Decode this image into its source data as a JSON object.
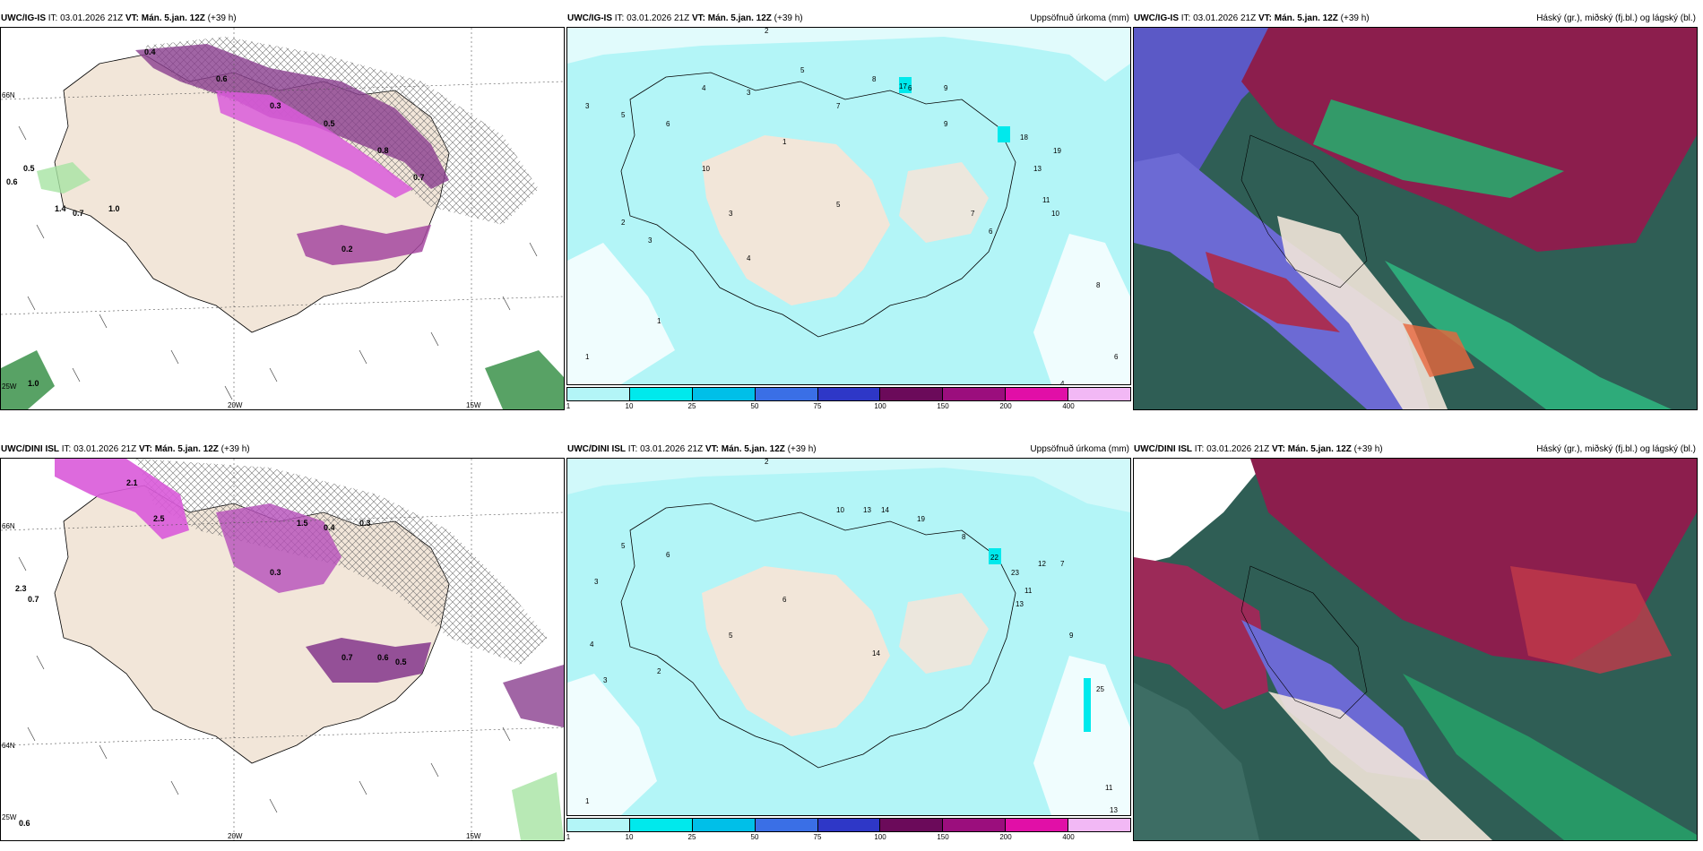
{
  "panels": [
    {
      "model": "UWC/IG-IS",
      "it_label": "IT:",
      "it": "03.01.2026 21Z",
      "vt_label": "VT:",
      "vt": "Mán. 5.jan. 12Z",
      "lead": "(+39 h)",
      "title": ""
    },
    {
      "model": "UWC/IG-IS",
      "it_label": "IT:",
      "it": "03.01.2026 21Z",
      "vt_label": "VT:",
      "vt": "Mán. 5.jan. 12Z",
      "lead": "(+39 h)",
      "title": "Uppsöfnuð úrkoma (mm)"
    },
    {
      "model": "UWC/IG-IS",
      "it_label": "IT:",
      "it": "03.01.2026 21Z",
      "vt_label": "VT:",
      "vt": "Mán. 5.jan. 12Z",
      "lead": "(+39 h)",
      "title": "Háský (gr.), miðský (fj.bl.) og lágský (bl.)"
    },
    {
      "model": "UWC/DINI ISL",
      "it_label": "IT:",
      "it": "03.01.2026 21Z",
      "vt_label": "VT:",
      "vt": "Mán. 5.jan. 12Z",
      "lead": "(+39 h)",
      "title": ""
    },
    {
      "model": "UWC/DINI ISL",
      "it_label": "IT:",
      "it": "03.01.2026 21Z",
      "vt_label": "VT:",
      "vt": "Mán. 5.jan. 12Z",
      "lead": "(+39 h)",
      "title": "Uppsöfnuð úrkoma (mm)"
    },
    {
      "model": "UWC/DINI ISL",
      "it_label": "IT:",
      "it": "03.01.2026 21Z",
      "vt_label": "VT:",
      "vt": "Mán. 5.jan. 12Z",
      "lead": "(+39 h)",
      "title": "Háský (gr.), miðský (fj.bl.) og lágský (bl.)"
    }
  ],
  "grid_labels": {
    "lon_20w": "20W",
    "lon_15w": "15W",
    "lat_66n": "66N",
    "lat_64n": "64N",
    "lon_25w": "25W"
  },
  "colorbar": {
    "ticks": [
      "1",
      "10",
      "25",
      "50",
      "75",
      "100",
      "150",
      "200",
      "400"
    ],
    "colors": [
      "#b3f5f7",
      "#00e9ec",
      "#00bfe8",
      "#3a6fe6",
      "#2e37c7",
      "#6b0a5a",
      "#9b0e7d",
      "#e10fa7",
      "#f2b8f5"
    ]
  },
  "values": {
    "precip_top": [
      "2",
      "3",
      "5",
      "6",
      "4",
      "3",
      "1",
      "5",
      "7",
      "8",
      "10",
      "6",
      "9",
      "17",
      "18",
      "13",
      "19",
      "11",
      "10",
      "8",
      "6",
      "4",
      "1",
      "2",
      "3",
      "3",
      "4",
      "5",
      "7",
      "6",
      "9",
      "1"
    ],
    "precip_bottom": [
      "2",
      "3",
      "5",
      "6",
      "10",
      "13",
      "14",
      "19",
      "22",
      "23",
      "11",
      "12",
      "14",
      "13",
      "25",
      "11",
      "13",
      "9",
      "7",
      "8",
      "4",
      "5",
      "6",
      "2",
      "1",
      "3"
    ],
    "snow_top": [
      "0.4",
      "0.6",
      "0.3",
      "0.5",
      "0.8",
      "0.7",
      "1.0",
      "1.4",
      "0.2",
      "0.5",
      "0.6",
      "0.7",
      "1.0"
    ],
    "snow_bottom": [
      "2.1",
      "2.5",
      "1.5",
      "0.4",
      "0.3",
      "0.7",
      "0.6",
      "0.5",
      "0.3",
      "2.3",
      "0.7",
      "0.6"
    ]
  }
}
